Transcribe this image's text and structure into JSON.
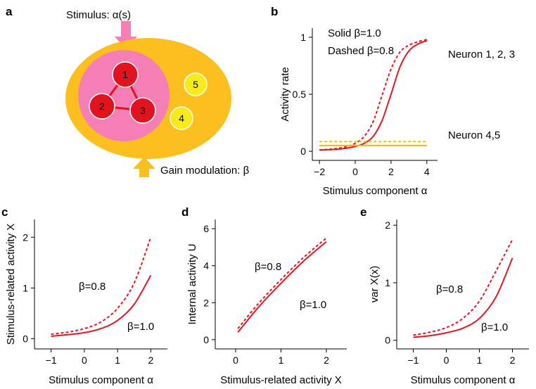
{
  "colors": {
    "curve": "#e8141e",
    "neuron45": "#f5b400",
    "dashed45": "#f5c400",
    "gain_zone": "#fbbf1f",
    "stim_zone": "#f57fb4",
    "neuron": "#e0131e",
    "neuron_yellow": "#f7ec19",
    "edge": "#e0131e",
    "arrow_pink": "#f57fb4",
    "arrow_yellow": "#f9bf1e"
  },
  "panel_a": {
    "label": "a",
    "stimulus_label": "Stimulus: α(s)",
    "gain_label": "Gain modulation: β",
    "neurons": [
      {
        "id": "1"
      },
      {
        "id": "2"
      },
      {
        "id": "3"
      },
      {
        "id": "4"
      },
      {
        "id": "5"
      }
    ],
    "icons": [
      "stimulus-arrow-icon",
      "gain-arrow-icon"
    ]
  },
  "chart_data": [
    {
      "panel": "b",
      "type": "line",
      "xlabel": "Stimulus component α",
      "ylabel": "Activity rate",
      "xlim": [
        -2.4,
        4.6
      ],
      "ylim": [
        -0.08,
        1.08
      ],
      "xticks": [
        -2,
        0,
        2,
        4
      ],
      "xtick_labels": [
        "−2",
        "0",
        "2",
        "4"
      ],
      "yticks": [
        0,
        0.5,
        1
      ],
      "ytick_labels": [
        "0",
        "0.5",
        "1"
      ],
      "legend_lines": [
        "Solid β=1.0",
        "Dashed β=0.8"
      ],
      "annotations": [
        "Neuron 1, 2, 3",
        "Neuron 4,5"
      ],
      "series": [
        {
          "name": "Neuron 1, 2, 3 β=1.0",
          "style": "solid",
          "color": "curve",
          "x": [
            -2,
            -1.5,
            -1,
            -0.5,
            0,
            0.5,
            1,
            1.5,
            2,
            2.5,
            3,
            3.5,
            4
          ],
          "y": [
            0.01,
            0.013,
            0.018,
            0.027,
            0.043,
            0.07,
            0.13,
            0.27,
            0.5,
            0.74,
            0.88,
            0.94,
            0.97
          ]
        },
        {
          "name": "Neuron 1, 2, 3 β=0.8",
          "style": "dashed",
          "color": "curve",
          "x": [
            -2,
            -1.5,
            -1,
            -0.5,
            0,
            0.5,
            1,
            1.5,
            2,
            2.5,
            3,
            3.5,
            4
          ],
          "y": [
            0.012,
            0.017,
            0.025,
            0.04,
            0.07,
            0.13,
            0.26,
            0.49,
            0.72,
            0.87,
            0.93,
            0.96,
            0.98
          ]
        },
        {
          "name": "Neuron 4,5 β=1.0",
          "style": "solid",
          "color": "neuron45",
          "x": [
            -2,
            4
          ],
          "y": [
            0.05,
            0.05
          ]
        },
        {
          "name": "Neuron 4,5 β=0.8",
          "style": "dashed",
          "color": "dashed45",
          "x": [
            -2,
            4
          ],
          "y": [
            0.085,
            0.085
          ]
        }
      ]
    },
    {
      "panel": "c",
      "type": "line",
      "xlabel": "Stimulus component α",
      "ylabel": "Stimulus-related activity X",
      "xlim": [
        -1.5,
        2.5
      ],
      "ylim": [
        -0.2,
        2.35
      ],
      "xticks": [
        -1,
        0,
        1,
        2
      ],
      "xtick_labels": [
        "−1",
        "0",
        "1",
        "2"
      ],
      "yticks": [
        0,
        1,
        2
      ],
      "ytick_labels": [
        "0",
        "1",
        "2"
      ],
      "annotations": [
        "β=0.8",
        "β=1.0"
      ],
      "series": [
        {
          "name": "β=1.0",
          "style": "solid",
          "color": "curve",
          "x": [
            -1,
            -0.5,
            0,
            0.5,
            1,
            1.5,
            2
          ],
          "y": [
            0.05,
            0.08,
            0.12,
            0.2,
            0.36,
            0.68,
            1.25
          ]
        },
        {
          "name": "β=0.8",
          "style": "dashed",
          "color": "curve",
          "x": [
            -1,
            -0.5,
            0,
            0.5,
            1,
            1.5,
            2
          ],
          "y": [
            0.09,
            0.13,
            0.2,
            0.33,
            0.6,
            1.1,
            2.0
          ]
        }
      ]
    },
    {
      "panel": "d",
      "type": "line",
      "xlabel": "Stimulus-related activity X",
      "ylabel": "Internal activity U",
      "xlim": [
        -0.45,
        2.45
      ],
      "ylim": [
        -0.5,
        6.5
      ],
      "xticks": [
        0,
        1,
        2
      ],
      "xtick_labels": [
        "0",
        "1",
        "2"
      ],
      "yticks": [
        0,
        2,
        4,
        6
      ],
      "ytick_labels": [
        "0",
        "2",
        "4",
        "6"
      ],
      "annotations": [
        "β=0.8",
        "β=1.0"
      ],
      "series": [
        {
          "name": "β=1.0",
          "style": "solid",
          "color": "curve",
          "x": [
            0.05,
            0.5,
            1,
            1.5,
            2
          ],
          "y": [
            0.4,
            1.75,
            3.05,
            4.25,
            5.3
          ]
        },
        {
          "name": "β=0.8",
          "style": "dashed",
          "color": "curve",
          "x": [
            0.05,
            0.5,
            1,
            1.5,
            2
          ],
          "y": [
            0.6,
            1.95,
            3.25,
            4.45,
            5.5
          ]
        }
      ]
    },
    {
      "panel": "e",
      "type": "line",
      "xlabel": "Stimulus component α",
      "ylabel": "var X(x)",
      "xlim": [
        -1.5,
        2.5
      ],
      "ylim": [
        -0.15,
        2.1
      ],
      "xticks": [
        -1,
        0,
        1,
        2
      ],
      "xtick_labels": [
        "−1",
        "0",
        "1",
        "2"
      ],
      "yticks": [
        0,
        1,
        2
      ],
      "ytick_labels": [
        "0",
        "1",
        "2"
      ],
      "annotations": [
        "β=0.8",
        "β=1.0"
      ],
      "series": [
        {
          "name": "β=1.0",
          "style": "solid",
          "color": "curve",
          "x": [
            -1,
            -0.5,
            0,
            0.5,
            1,
            1.5,
            2
          ],
          "y": [
            0.05,
            0.08,
            0.13,
            0.21,
            0.38,
            0.75,
            1.43
          ]
        },
        {
          "name": "β=0.8",
          "style": "dashed",
          "color": "curve",
          "x": [
            -1,
            -0.5,
            0,
            0.5,
            1,
            1.5,
            2
          ],
          "y": [
            0.09,
            0.14,
            0.22,
            0.38,
            0.68,
            1.2,
            1.75
          ]
        }
      ]
    }
  ]
}
